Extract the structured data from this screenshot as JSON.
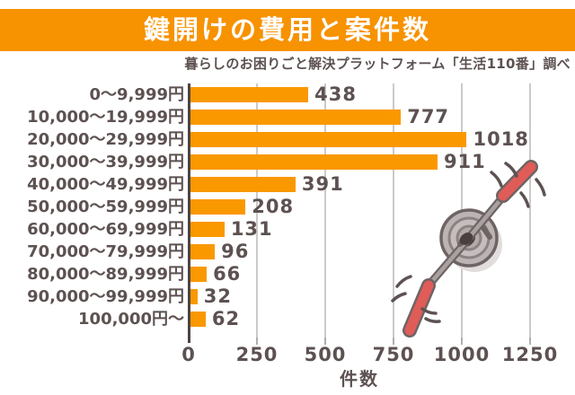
{
  "page": {
    "title": "鍵開けの費用と案件数",
    "subtitle": "暮らしのお困りごと解決プラットフォーム「生活110番」調べ"
  },
  "chart_data": {
    "type": "bar",
    "orientation": "horizontal",
    "title": "鍵開けの費用と案件数",
    "source_note": "暮らしのお困りごと解決プラットフォーム「生活110番」調べ",
    "categories": [
      "0〜9,999円",
      "10,000〜19,999円",
      "20,000〜29,999円",
      "30,000〜39,999円",
      "40,000〜49,999円",
      "50,000〜59,999円",
      "60,000〜69,999円",
      "70,000〜79,999円",
      "80,000〜89,999円",
      "90,000〜99,999円",
      "100,000円〜"
    ],
    "values": [
      438,
      777,
      1018,
      911,
      391,
      208,
      131,
      96,
      66,
      32,
      62
    ],
    "xlabel": "件数",
    "ylabel": "",
    "x_ticks": [
      0,
      250,
      500,
      750,
      1000,
      1250
    ],
    "xlim": [
      0,
      1250
    ],
    "grid": true,
    "legend": false
  },
  "colors": {
    "banner_bg": "#F79200",
    "banner_text": "#FFFFFF",
    "bar": "#FA9800",
    "text": "#5D5151",
    "axis": "#4C4444",
    "gridline": "#CDC9C9",
    "tick": "#B3ADAD",
    "tool_handle_red": "#E05C58",
    "tool_metal_gray": "#A9A1A1",
    "lock_body_gray": "#BCB4B4",
    "outline_dark": "#6F6464"
  },
  "illustration": {
    "name": "lock-picking-tools-in-lock-cylinder"
  }
}
